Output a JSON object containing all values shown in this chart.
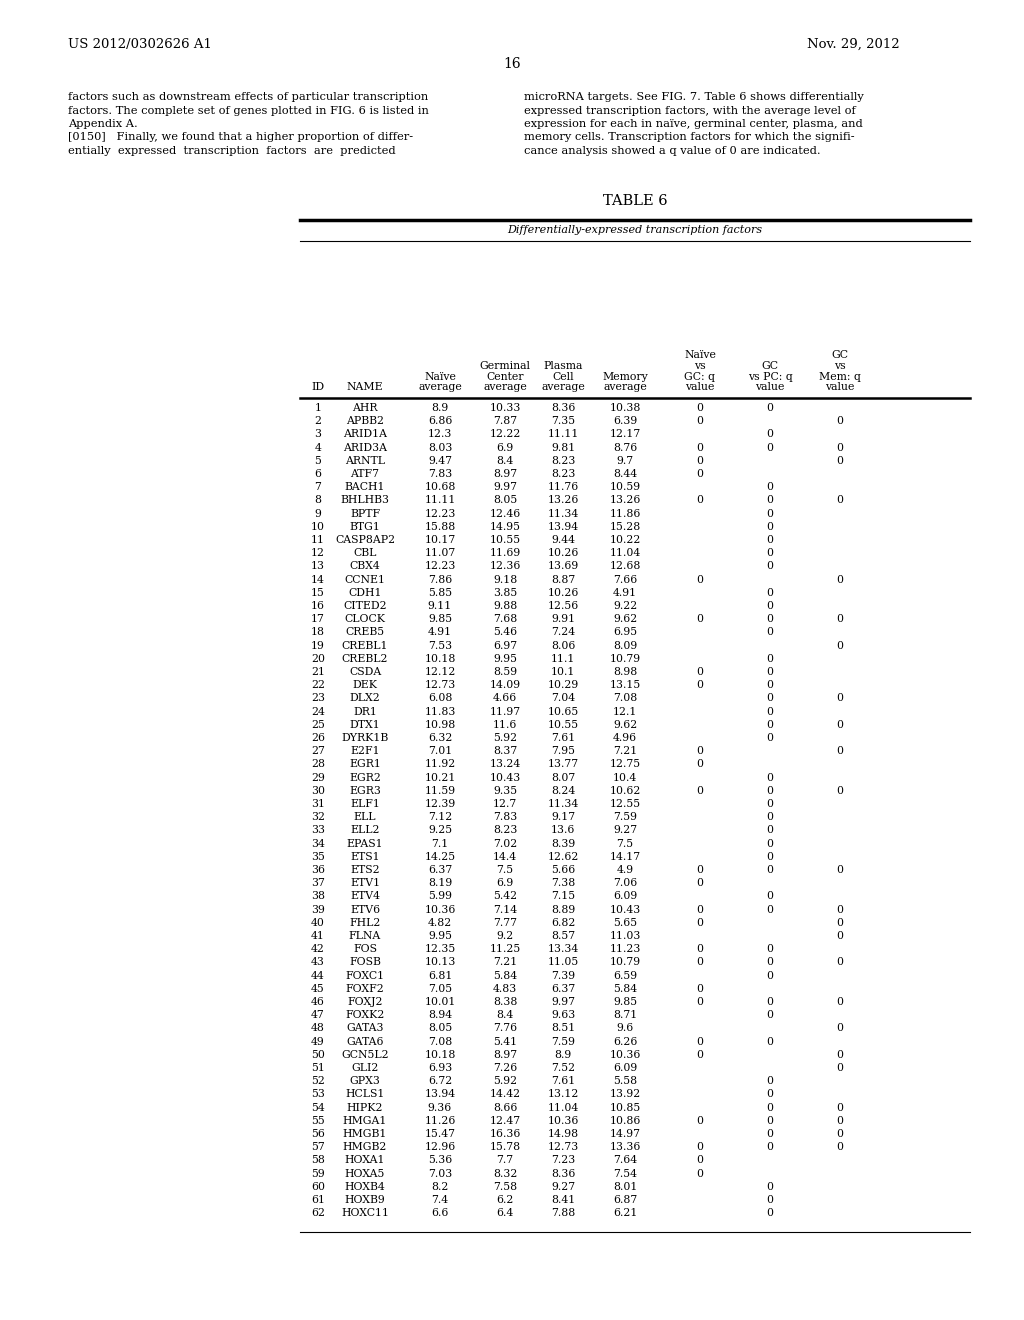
{
  "patent_number": "US 2012/0302626 A1",
  "date": "Nov. 29, 2012",
  "page_number": "16",
  "left_text": [
    "factors such as downstream effects of particular transcription",
    "factors. The complete set of genes plotted in FIG. 6 is listed in",
    "Appendix A.",
    "[0150]   Finally, we found that a higher proportion of differ-",
    "entially  expressed  transcription  factors  are  predicted"
  ],
  "right_text": [
    "microRNA targets. See FIG. 7. Table 6 shows differentially",
    "expressed transcription factors, with the average level of",
    "expression for each in naïve, germinal center, plasma, and",
    "memory cells. Transcription factors for which the signifi-",
    "cance analysis showed a q value of 0 are indicated."
  ],
  "table_title": "TABLE 6",
  "table_subtitle": "Differentially-expressed transcription factors",
  "table_data": [
    [
      1,
      "AHR",
      "8.9",
      "10.33",
      "8.36",
      "10.38",
      "0",
      "0",
      ""
    ],
    [
      2,
      "APBB2",
      "6.86",
      "7.87",
      "7.35",
      "6.39",
      "0",
      "",
      "0"
    ],
    [
      3,
      "ARID1A",
      "12.3",
      "12.22",
      "11.11",
      "12.17",
      "",
      "0",
      ""
    ],
    [
      4,
      "ARID3A",
      "8.03",
      "6.9",
      "9.81",
      "8.76",
      "0",
      "0",
      "0"
    ],
    [
      5,
      "ARNTL",
      "9.47",
      "8.4",
      "8.23",
      "9.7",
      "0",
      "",
      "0"
    ],
    [
      6,
      "ATF7",
      "7.83",
      "8.97",
      "8.23",
      "8.44",
      "0",
      "",
      ""
    ],
    [
      7,
      "BACH1",
      "10.68",
      "9.97",
      "11.76",
      "10.59",
      "",
      "0",
      ""
    ],
    [
      8,
      "BHLHB3",
      "11.11",
      "8.05",
      "13.26",
      "13.26",
      "0",
      "0",
      "0"
    ],
    [
      9,
      "BPTF",
      "12.23",
      "12.46",
      "11.34",
      "11.86",
      "",
      "0",
      ""
    ],
    [
      10,
      "BTG1",
      "15.88",
      "14.95",
      "13.94",
      "15.28",
      "",
      "0",
      ""
    ],
    [
      11,
      "CASP8AP2",
      "10.17",
      "10.55",
      "9.44",
      "10.22",
      "",
      "0",
      ""
    ],
    [
      12,
      "CBL",
      "11.07",
      "11.69",
      "10.26",
      "11.04",
      "",
      "0",
      ""
    ],
    [
      13,
      "CBX4",
      "12.23",
      "12.36",
      "13.69",
      "12.68",
      "",
      "0",
      ""
    ],
    [
      14,
      "CCNE1",
      "7.86",
      "9.18",
      "8.87",
      "7.66",
      "0",
      "",
      "0"
    ],
    [
      15,
      "CDH1",
      "5.85",
      "3.85",
      "10.26",
      "4.91",
      "",
      "0",
      ""
    ],
    [
      16,
      "CITED2",
      "9.11",
      "9.88",
      "12.56",
      "9.22",
      "",
      "0",
      ""
    ],
    [
      17,
      "CLOCK",
      "9.85",
      "7.68",
      "9.91",
      "9.62",
      "0",
      "0",
      "0"
    ],
    [
      18,
      "CREB5",
      "4.91",
      "5.46",
      "7.24",
      "6.95",
      "",
      "0",
      ""
    ],
    [
      19,
      "CREBL1",
      "7.53",
      "6.97",
      "8.06",
      "8.09",
      "",
      "",
      "0"
    ],
    [
      20,
      "CREBL2",
      "10.18",
      "9.95",
      "11.1",
      "10.79",
      "",
      "0",
      ""
    ],
    [
      21,
      "CSDA",
      "12.12",
      "8.59",
      "10.1",
      "8.98",
      "0",
      "0",
      ""
    ],
    [
      22,
      "DEK",
      "12.73",
      "14.09",
      "10.29",
      "13.15",
      "0",
      "0",
      ""
    ],
    [
      23,
      "DLX2",
      "6.08",
      "4.66",
      "7.04",
      "7.08",
      "",
      "0",
      "0"
    ],
    [
      24,
      "DR1",
      "11.83",
      "11.97",
      "10.65",
      "12.1",
      "",
      "0",
      ""
    ],
    [
      25,
      "DTX1",
      "10.98",
      "11.6",
      "10.55",
      "9.62",
      "",
      "0",
      "0"
    ],
    [
      26,
      "DYRK1B",
      "6.32",
      "5.92",
      "7.61",
      "4.96",
      "",
      "0",
      ""
    ],
    [
      27,
      "E2F1",
      "7.01",
      "8.37",
      "7.95",
      "7.21",
      "0",
      "",
      "0"
    ],
    [
      28,
      "EGR1",
      "11.92",
      "13.24",
      "13.77",
      "12.75",
      "0",
      "",
      ""
    ],
    [
      29,
      "EGR2",
      "10.21",
      "10.43",
      "8.07",
      "10.4",
      "",
      "0",
      ""
    ],
    [
      30,
      "EGR3",
      "11.59",
      "9.35",
      "8.24",
      "10.62",
      "0",
      "0",
      "0"
    ],
    [
      31,
      "ELF1",
      "12.39",
      "12.7",
      "11.34",
      "12.55",
      "",
      "0",
      ""
    ],
    [
      32,
      "ELL",
      "7.12",
      "7.83",
      "9.17",
      "7.59",
      "",
      "0",
      ""
    ],
    [
      33,
      "ELL2",
      "9.25",
      "8.23",
      "13.6",
      "9.27",
      "",
      "0",
      ""
    ],
    [
      34,
      "EPAS1",
      "7.1",
      "7.02",
      "8.39",
      "7.5",
      "",
      "0",
      ""
    ],
    [
      35,
      "ETS1",
      "14.25",
      "14.4",
      "12.62",
      "14.17",
      "",
      "0",
      ""
    ],
    [
      36,
      "ETS2",
      "6.37",
      "7.5",
      "5.66",
      "4.9",
      "0",
      "0",
      "0"
    ],
    [
      37,
      "ETV1",
      "8.19",
      "6.9",
      "7.38",
      "7.06",
      "0",
      "",
      ""
    ],
    [
      38,
      "ETV4",
      "5.99",
      "5.42",
      "7.15",
      "6.09",
      "",
      "0",
      ""
    ],
    [
      39,
      "ETV6",
      "10.36",
      "7.14",
      "8.89",
      "10.43",
      "0",
      "0",
      "0"
    ],
    [
      40,
      "FHL2",
      "4.82",
      "7.77",
      "6.82",
      "5.65",
      "0",
      "",
      "0"
    ],
    [
      41,
      "FLNA",
      "9.95",
      "9.2",
      "8.57",
      "11.03",
      "",
      "",
      "0"
    ],
    [
      42,
      "FOS",
      "12.35",
      "11.25",
      "13.34",
      "11.23",
      "0",
      "0",
      ""
    ],
    [
      43,
      "FOSB",
      "10.13",
      "7.21",
      "11.05",
      "10.79",
      "0",
      "0",
      "0"
    ],
    [
      44,
      "FOXC1",
      "6.81",
      "5.84",
      "7.39",
      "6.59",
      "",
      "0",
      ""
    ],
    [
      45,
      "FOXF2",
      "7.05",
      "4.83",
      "6.37",
      "5.84",
      "0",
      "",
      ""
    ],
    [
      46,
      "FOXJ2",
      "10.01",
      "8.38",
      "9.97",
      "9.85",
      "0",
      "0",
      "0"
    ],
    [
      47,
      "FOXK2",
      "8.94",
      "8.4",
      "9.63",
      "8.71",
      "",
      "0",
      ""
    ],
    [
      48,
      "GATA3",
      "8.05",
      "7.76",
      "8.51",
      "9.6",
      "",
      "",
      "0"
    ],
    [
      49,
      "GATA6",
      "7.08",
      "5.41",
      "7.59",
      "6.26",
      "0",
      "0",
      ""
    ],
    [
      50,
      "GCN5L2",
      "10.18",
      "8.97",
      "8.9",
      "10.36",
      "0",
      "",
      "0"
    ],
    [
      51,
      "GLI2",
      "6.93",
      "7.26",
      "7.52",
      "6.09",
      "",
      "",
      "0"
    ],
    [
      52,
      "GPX3",
      "6.72",
      "5.92",
      "7.61",
      "5.58",
      "",
      "0",
      ""
    ],
    [
      53,
      "HCLS1",
      "13.94",
      "14.42",
      "13.12",
      "13.92",
      "",
      "0",
      ""
    ],
    [
      54,
      "HIPK2",
      "9.36",
      "8.66",
      "11.04",
      "10.85",
      "",
      "0",
      "0"
    ],
    [
      55,
      "HMGA1",
      "11.26",
      "12.47",
      "10.36",
      "10.86",
      "0",
      "0",
      "0"
    ],
    [
      56,
      "HMGB1",
      "15.47",
      "16.36",
      "14.98",
      "14.97",
      "",
      "0",
      "0"
    ],
    [
      57,
      "HMGB2",
      "12.96",
      "15.78",
      "12.73",
      "13.36",
      "0",
      "0",
      "0"
    ],
    [
      58,
      "HOXA1",
      "5.36",
      "7.7",
      "7.23",
      "7.64",
      "0",
      "",
      ""
    ],
    [
      59,
      "HOXA5",
      "7.03",
      "8.32",
      "8.36",
      "7.54",
      "0",
      "",
      ""
    ],
    [
      60,
      "HOXB4",
      "8.2",
      "7.58",
      "9.27",
      "8.01",
      "",
      "0",
      ""
    ],
    [
      61,
      "HOXB9",
      "7.4",
      "6.2",
      "8.41",
      "6.87",
      "",
      "0",
      ""
    ],
    [
      62,
      "HOXC11",
      "6.6",
      "6.4",
      "7.88",
      "6.21",
      "",
      "0",
      ""
    ]
  ]
}
